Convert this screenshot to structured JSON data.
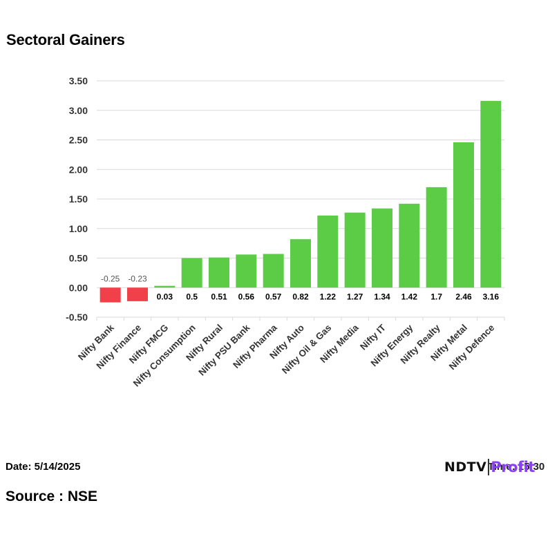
{
  "title": "Sectoral Gainers",
  "footer": {
    "date": "Date: 5/14/2025",
    "time": "Time: 15:30",
    "source": "Source : NSE",
    "logo_left": "NDTV",
    "logo_right": "Profit"
  },
  "colors": {
    "positive": "#5ccb46",
    "negative": "#f0414b",
    "grid": "#d9d9d9"
  },
  "chart_data": {
    "type": "bar",
    "title": "Sectoral Gainers",
    "categories": [
      "Nifty Bank",
      "Nifty Finance",
      "Nifty FMCG",
      "Nifty Consumption",
      "Nifty Rural",
      "Nifty PSU Bank",
      "Nifty Pharma",
      "Nifty Auto",
      "Nifty Oil & Gas",
      "Nifty Media",
      "Nifty IT",
      "Nifty Energy",
      "Nifty Realty",
      "Nifty Metal",
      "Nifty Defence"
    ],
    "values": [
      -0.25,
      -0.23,
      0.03,
      0.5,
      0.51,
      0.56,
      0.57,
      0.82,
      1.22,
      1.27,
      1.34,
      1.42,
      1.7,
      2.46,
      3.16
    ],
    "data_labels": [
      "-0.25",
      "-0.23",
      "0.03",
      "0.5",
      "0.51",
      "0.56",
      "0.57",
      "0.82",
      "1.22",
      "1.27",
      "1.34",
      "1.42",
      "1.7",
      "2.46",
      "3.16"
    ],
    "yticks": [
      "-0.50",
      "0.00",
      "0.50",
      "1.00",
      "1.50",
      "2.00",
      "2.50",
      "3.00",
      "3.50"
    ],
    "ylim": [
      -0.5,
      3.5
    ],
    "xlabel": "",
    "ylabel": "",
    "grid": true,
    "legend": "none"
  }
}
